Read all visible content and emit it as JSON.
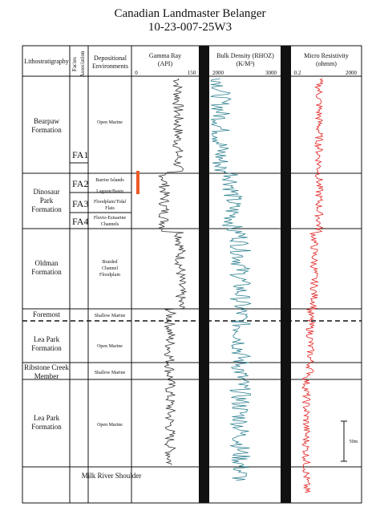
{
  "title": {
    "line1": "Canadian Landmaster Belanger",
    "line2": "10-23-007-25W3"
  },
  "headers": {
    "lithostratigraphy": "Lithostratigraphy",
    "facies": "Facies Association",
    "depositional": [
      "Depositional",
      "Environments"
    ],
    "gamma": {
      "name": "Gamma Ray",
      "unit": "(API)",
      "min": "0",
      "max": "150"
    },
    "density": {
      "name": "Bulk Density (RHOZ)",
      "unit": "(K/M³)",
      "min": "2000",
      "max": "3000"
    },
    "resistivity": {
      "name": "Micro Resistivity",
      "unit": "(ohmm)",
      "min": "0.2",
      "max": "2000"
    }
  },
  "formations": [
    {
      "id": "bearpaw",
      "lines": [
        "Bearpaw",
        "Formation"
      ]
    },
    {
      "id": "dinosaur-park",
      "lines": [
        "Dinosaur",
        "Park",
        "Formation"
      ]
    },
    {
      "id": "oldman",
      "lines": [
        "Oldman",
        "Formation"
      ]
    },
    {
      "id": "foremost",
      "lines": [
        "Foremost"
      ]
    },
    {
      "id": "lea-park-upper",
      "lines": [
        "Lea Park",
        "Formation"
      ]
    },
    {
      "id": "ribstone-creek",
      "lines": [
        "Ribstone Creek",
        "Member"
      ]
    },
    {
      "id": "lea-park-lower",
      "lines": [
        "Lea Park",
        "Formation"
      ]
    },
    {
      "id": "milk-river",
      "lines": [
        "Milk River Shoulder"
      ]
    }
  ],
  "facies_associations": [
    "FA1",
    "FA2",
    "FA3",
    "FA4"
  ],
  "environments": [
    {
      "id": "open-marine-1",
      "lines": [
        "Open Marine"
      ]
    },
    {
      "id": "barrier-islands",
      "lines": [
        "Barrier Islands"
      ]
    },
    {
      "id": "lagoon-basin",
      "lines": [
        "Lagoon/Basin"
      ]
    },
    {
      "id": "floodplain",
      "lines": [
        "Floodplain/Tidal",
        "Flats"
      ]
    },
    {
      "id": "fluvio-estuarine",
      "lines": [
        "Fluvio-Estuarine",
        "Channels"
      ]
    },
    {
      "id": "braided",
      "lines": [
        "Braided",
        "Channel",
        "Floodplain"
      ]
    },
    {
      "id": "shallow-marine-1",
      "lines": [
        "Shallow Marine"
      ]
    },
    {
      "id": "open-marine-2",
      "lines": [
        "Open Marine"
      ]
    },
    {
      "id": "shallow-marine-2",
      "lines": [
        "Shallow Marine"
      ]
    },
    {
      "id": "open-marine-3",
      "lines": [
        "Open Marine"
      ]
    }
  ],
  "scale_bar": {
    "label": "50m"
  },
  "colors": {
    "gamma": "#333333",
    "density": "#2a7f8f",
    "resistivity": "#e02020",
    "marker": "#ef5a28",
    "divider": "#111111"
  }
}
